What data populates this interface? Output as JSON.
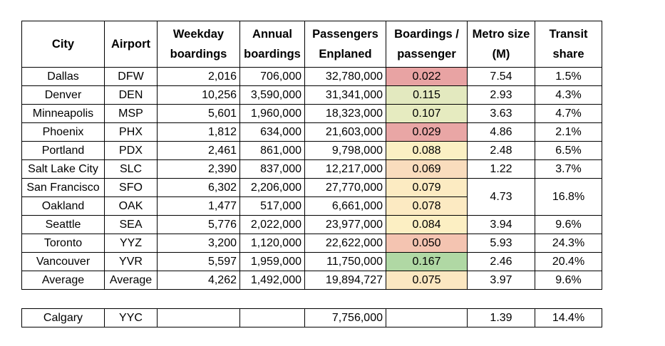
{
  "headers": {
    "city": "City",
    "airport": "Airport",
    "weekday": [
      "Weekday",
      "boardings"
    ],
    "annual": [
      "Annual",
      "boardings"
    ],
    "passengers": [
      "Passengers",
      "Enplaned"
    ],
    "bpp": [
      "Boardings /",
      "passenger"
    ],
    "metro": [
      "Metro size",
      "(M)"
    ],
    "transit": [
      "Transit",
      "share"
    ]
  },
  "rows": [
    {
      "city": "Dallas",
      "airport": "DFW",
      "weekday": "2,016",
      "annual": "706,000",
      "passengers": "32,780,000",
      "bpp": "0.022",
      "bpp_color": "#e8a3a3",
      "metro": "7.54",
      "transit": "1.5%"
    },
    {
      "city": "Denver",
      "airport": "DEN",
      "weekday": "10,256",
      "annual": "3,590,000",
      "passengers": "31,341,000",
      "bpp": "0.115",
      "bpp_color": "#e3e9bf",
      "metro": "2.93",
      "transit": "4.3%"
    },
    {
      "city": "Minneapolis",
      "airport": "MSP",
      "weekday": "5,601",
      "annual": "1,960,000",
      "passengers": "18,323,000",
      "bpp": "0.107",
      "bpp_color": "#e6ebc0",
      "metro": "3.63",
      "transit": "4.7%"
    },
    {
      "city": "Phoenix",
      "airport": "PHX",
      "weekday": "1,812",
      "annual": "634,000",
      "passengers": "21,603,000",
      "bpp": "0.029",
      "bpp_color": "#e9a6a5",
      "metro": "4.86",
      "transit": "2.1%"
    },
    {
      "city": "Portland",
      "airport": "PDX",
      "weekday": "2,461",
      "annual": "861,000",
      "passengers": "9,798,000",
      "bpp": "0.088",
      "bpp_color": "#fbf0c3",
      "metro": "2.48",
      "transit": "6.5%"
    },
    {
      "city": "Salt Lake City",
      "airport": "SLC",
      "weekday": "2,390",
      "annual": "837,000",
      "passengers": "12,217,000",
      "bpp": "0.069",
      "bpp_color": "#f9dcbd",
      "metro": "1.22",
      "transit": "3.7%"
    },
    {
      "city": "San Francisco",
      "airport": "SFO",
      "weekday": "6,302",
      "annual": "2,206,000",
      "passengers": "27,770,000",
      "bpp": "0.079",
      "bpp_color": "#fcebc2",
      "metro": "4.73",
      "transit": "16.8%"
    },
    {
      "city": "Oakland",
      "airport": "OAK",
      "weekday": "1,477",
      "annual": "517,000",
      "passengers": "6,661,000",
      "bpp": "0.078",
      "bpp_color": "#fceac2"
    },
    {
      "city": "Seattle",
      "airport": "SEA",
      "weekday": "5,776",
      "annual": "2,022,000",
      "passengers": "23,977,000",
      "bpp": "0.084",
      "bpp_color": "#fcefc3",
      "metro": "3.94",
      "transit": "9.6%"
    },
    {
      "city": "Toronto",
      "airport": "YYZ",
      "weekday": "3,200",
      "annual": "1,120,000",
      "passengers": "22,622,000",
      "bpp": "0.050",
      "bpp_color": "#f4c4b1",
      "metro": "5.93",
      "transit": "24.3%"
    },
    {
      "city": "Vancouver",
      "airport": "YVR",
      "weekday": "5,597",
      "annual": "1,959,000",
      "passengers": "11,750,000",
      "bpp": "0.167",
      "bpp_color": "#b0d8a4",
      "metro": "2.46",
      "transit": "20.4%"
    }
  ],
  "average": {
    "city": "Average",
    "airport": "Average",
    "weekday": "4,262",
    "annual": "1,492,000",
    "passengers": "19,894,727",
    "bpp": "0.075",
    "bpp_color": "#fbe7c1",
    "metro": "3.97",
    "transit": "9.6%"
  },
  "extra": {
    "city": "Calgary",
    "airport": "YYC",
    "weekday": "",
    "annual": "",
    "passengers": "7,756,000",
    "bpp": "",
    "metro": "1.39",
    "transit": "14.4%"
  }
}
